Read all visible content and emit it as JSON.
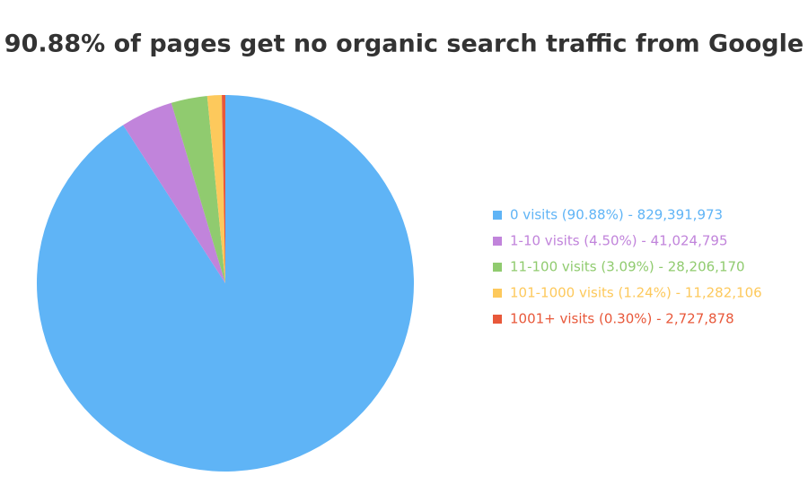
{
  "chart_data": {
    "type": "pie",
    "title": "90.88% of pages get no organic search traffic from Google",
    "categories": [
      "0 visits (90.88%) - 829,391,973",
      "1-10 visits (4.50%) - 41,024,795",
      "11-100 visits (3.09%) - 28,206,170",
      "101-1000 visits (1.24%) - 11,282,106",
      "1001+ visits (0.30%) - 2,727,878"
    ],
    "values": [
      829391973,
      41024795,
      28206170,
      11282106,
      2727878
    ],
    "colors": [
      "#5fb4f6",
      "#c184db",
      "#90cb6f",
      "#fdc95c",
      "#e8583a"
    ],
    "legend": "right"
  }
}
